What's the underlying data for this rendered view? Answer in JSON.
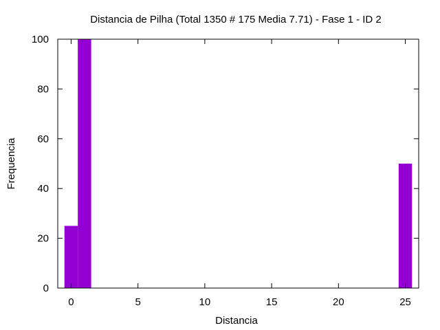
{
  "chart_data": {
    "type": "bar",
    "title": "Distancia de Pilha (Total 1350 # 175 Media 7.71) - Fase  1 - ID 2",
    "xlabel": "Distancia",
    "ylabel": "Frequencia",
    "xlim": [
      -1,
      26
    ],
    "ylim": [
      0,
      100
    ],
    "xticks": [
      0,
      5,
      10,
      15,
      20,
      25
    ],
    "yticks": [
      0,
      20,
      40,
      60,
      80,
      100
    ],
    "bar_width": 1,
    "grid": false,
    "legend": "none",
    "bar_color": "#9400d3",
    "bars": [
      {
        "x": 0,
        "value": 25
      },
      {
        "x": 1,
        "value": 100
      },
      {
        "x": 25,
        "value": 50
      }
    ]
  }
}
